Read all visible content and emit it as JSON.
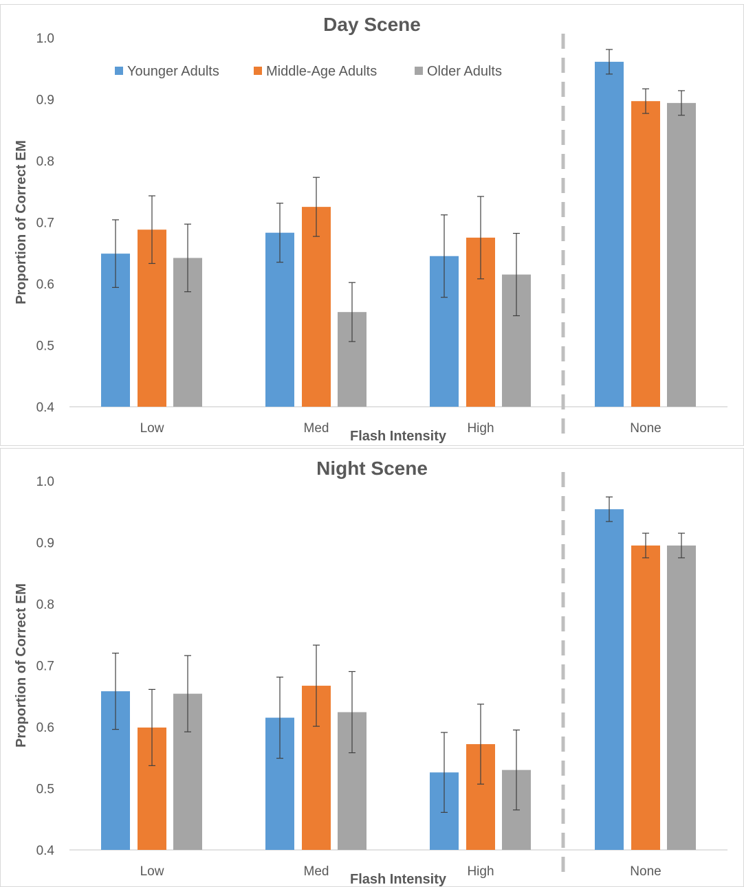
{
  "chart_data": [
    {
      "type": "bar",
      "title": "Day Scene",
      "xlabel": "Flash Intensity",
      "ylabel": "Proportion of Correct EM",
      "ylim": [
        0.4,
        1.0
      ],
      "yticks": [
        "0.4",
        "0.5",
        "0.6",
        "0.7",
        "0.8",
        "0.9",
        "1.0"
      ],
      "categories": [
        "Low",
        "Med",
        "High",
        "None"
      ],
      "series": [
        {
          "name": "Younger Adults",
          "color": "#5B9BD5",
          "values": [
            0.649,
            0.683,
            0.645,
            0.961
          ],
          "errors": [
            0.055,
            0.048,
            0.067,
            0.02
          ]
        },
        {
          "name": "Middle-Age Adults",
          "color": "#ED7D31",
          "values": [
            0.688,
            0.725,
            0.675,
            0.897
          ],
          "errors": [
            0.055,
            0.048,
            0.067,
            0.02
          ]
        },
        {
          "name": "Older Adults",
          "color": "#A5A5A5",
          "values": [
            0.642,
            0.554,
            0.615,
            0.894
          ],
          "errors": [
            0.055,
            0.048,
            0.067,
            0.02
          ]
        }
      ],
      "legend": "top-left",
      "grid": false,
      "separator_before": "None"
    },
    {
      "type": "bar",
      "title": "Night Scene",
      "xlabel": "Flash Intensity",
      "ylabel": "Proportion of Correct EM",
      "ylim": [
        0.4,
        1.0
      ],
      "yticks": [
        "0.4",
        "0.5",
        "0.6",
        "0.7",
        "0.8",
        "0.9",
        "1.0"
      ],
      "categories": [
        "Low",
        "Med",
        "High",
        "None"
      ],
      "series": [
        {
          "name": "Younger Adults",
          "color": "#5B9BD5",
          "values": [
            0.658,
            0.615,
            0.526,
            0.954
          ],
          "errors": [
            0.062,
            0.066,
            0.065,
            0.02
          ]
        },
        {
          "name": "Middle-Age Adults",
          "color": "#ED7D31",
          "values": [
            0.599,
            0.667,
            0.572,
            0.895
          ],
          "errors": [
            0.062,
            0.066,
            0.065,
            0.02
          ]
        },
        {
          "name": "Older Adults",
          "color": "#A5A5A5",
          "values": [
            0.654,
            0.624,
            0.53,
            0.895
          ],
          "errors": [
            0.062,
            0.066,
            0.065,
            0.02
          ]
        }
      ],
      "legend": "none",
      "grid": false,
      "separator_before": "None"
    }
  ]
}
